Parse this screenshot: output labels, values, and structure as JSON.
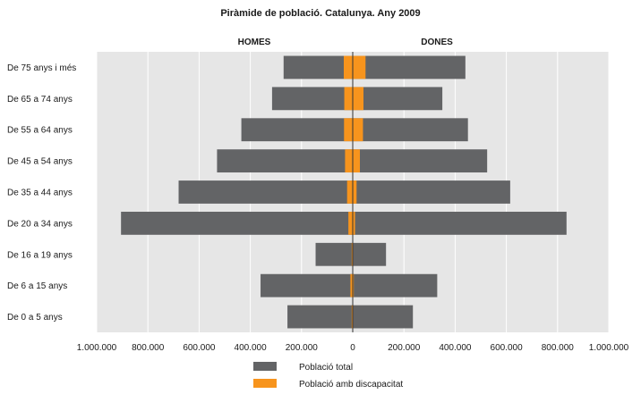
{
  "chart_data": {
    "type": "bar",
    "orientation": "horizontal",
    "layout": "population-pyramid",
    "title": "Piràmide de població. Catalunya. Any 2009",
    "left_label": "HOMES",
    "right_label": "DONES",
    "categories": [
      "De 75 anys i més",
      "De 65 a 74 anys",
      "De 55 a 64 anys",
      "De 45 a 54 anys",
      "De 35 a 44 anys",
      "De 20 a 34 anys",
      "De 16 a 19 anys",
      "De 6 a 15 anys",
      "De 0 a 5 anys"
    ],
    "series": [
      {
        "name": "Població total",
        "color": "#636466",
        "homes": [
          270000,
          315000,
          435000,
          530000,
          680000,
          905000,
          145000,
          360000,
          255000
        ],
        "dones": [
          440000,
          350000,
          450000,
          525000,
          615000,
          835000,
          130000,
          330000,
          235000
        ]
      },
      {
        "name": "Població amb discapacitat",
        "color": "#f7941d",
        "homes": [
          35000,
          33000,
          34000,
          30000,
          22000,
          17000,
          4000,
          9000,
          4000
        ],
        "dones": [
          50000,
          42000,
          40000,
          28000,
          15000,
          9000,
          2000,
          4000,
          2000
        ]
      }
    ],
    "xlim": [
      -1000000,
      1000000
    ],
    "xticks": [
      -1000000,
      -800000,
      -600000,
      -400000,
      -200000,
      0,
      200000,
      400000,
      600000,
      800000,
      1000000
    ],
    "xtick_labels": [
      "1.000.000",
      "800.000",
      "600.000",
      "400.000",
      "200.000",
      "0",
      "200.000",
      "400.000",
      "600.000",
      "800.000",
      "1.000.000"
    ],
    "grid": "vertical",
    "plot_background": "#e6e6e6",
    "legend_position": "bottom-center"
  }
}
